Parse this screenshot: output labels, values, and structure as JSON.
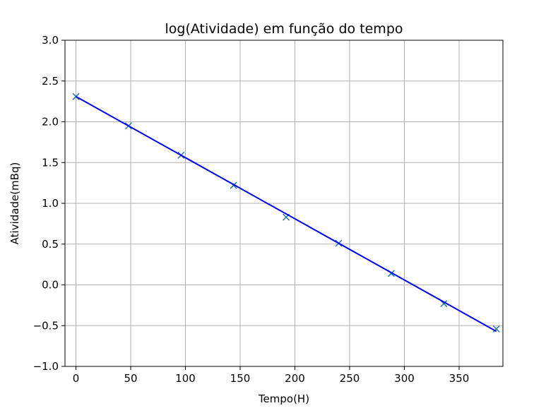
{
  "chart_data": {
    "type": "line",
    "title": "log(Atividade) em função do tempo",
    "xlabel": "Tempo(H)",
    "ylabel": "Atividade(mBq)",
    "xlim": [
      -10,
      390
    ],
    "ylim": [
      -1.0,
      3.0
    ],
    "xticks": [
      0,
      50,
      100,
      150,
      200,
      250,
      300,
      350
    ],
    "yticks": [
      -1.0,
      -0.5,
      0.0,
      0.5,
      1.0,
      1.5,
      2.0,
      2.5,
      3.0
    ],
    "xtick_labels": [
      "0",
      "50",
      "100",
      "150",
      "200",
      "250",
      "300",
      "350"
    ],
    "ytick_labels": [
      "−1.0",
      "−0.5",
      "0.0",
      "0.5",
      "1.0",
      "1.5",
      "2.0",
      "2.5",
      "3.0"
    ],
    "grid": true,
    "series": [
      {
        "kind": "scatter",
        "marker": "x",
        "color": "#1f77b4",
        "x": [
          0,
          48,
          96,
          144,
          192,
          240,
          288,
          336,
          384
        ],
        "y": [
          2.31,
          1.95,
          1.59,
          1.22,
          0.83,
          0.51,
          0.14,
          -0.23,
          -0.54
        ]
      },
      {
        "kind": "line",
        "color": "#0000ff",
        "x": [
          0,
          384
        ],
        "y": [
          2.31,
          -0.57
        ]
      }
    ]
  }
}
